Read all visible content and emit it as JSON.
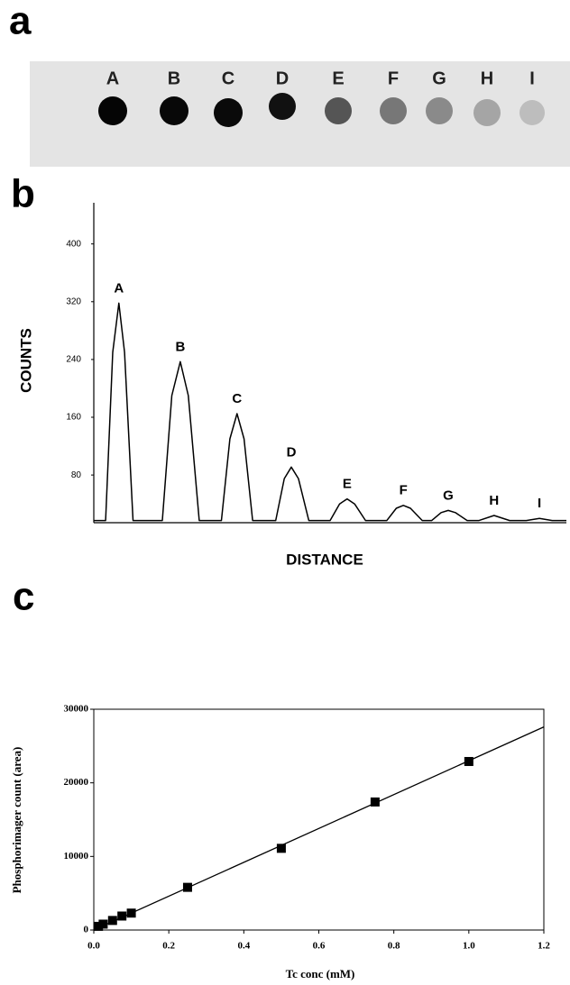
{
  "panel_a": {
    "label": "a",
    "spot_labels": [
      "A",
      "B",
      "C",
      "D",
      "E",
      "F",
      "G",
      "H",
      "I"
    ]
  },
  "chart_data": [
    {
      "type": "line",
      "panel_label": "b",
      "ylabel": "COUNTS",
      "xlabel": "DISTANCE",
      "xlim": [
        0,
        100
      ],
      "ylim": [
        14,
        457
      ],
      "yticks": [
        80,
        160,
        240,
        320,
        400
      ],
      "x": [
        0,
        2.5,
        4,
        5.3,
        6.5,
        8.3,
        14.5,
        16.5,
        18.3,
        20,
        22.3,
        27,
        28.8,
        30.3,
        31.8,
        33.6,
        38.5,
        40.3,
        41.8,
        43.3,
        45.5,
        50,
        52,
        53.6,
        55.2,
        57.5,
        62,
        64,
        65.5,
        67,
        69.5,
        71.5,
        73.5,
        75,
        76.5,
        79,
        81.5,
        84.7,
        88,
        91.5,
        94.3,
        97,
        100
      ],
      "values": [
        17,
        17,
        250,
        318,
        250,
        17,
        17,
        190,
        237,
        190,
        17,
        17,
        130,
        165,
        130,
        17,
        17,
        75,
        91,
        75,
        17,
        17,
        40,
        47,
        40,
        17,
        17,
        34,
        38,
        34,
        17,
        17,
        28,
        31,
        28,
        17,
        17,
        24,
        17,
        17,
        20,
        17,
        17
      ],
      "peak_labels": [
        "A",
        "B",
        "C",
        "D",
        "E",
        "F",
        "G",
        "H",
        "I"
      ],
      "color": "#000000"
    },
    {
      "type": "scatter",
      "panel_label": "c",
      "xlabel": "Tc conc (mM)",
      "ylabel": "Phosphorimager count (area)",
      "xlim": [
        0,
        1.2
      ],
      "ylim": [
        0,
        30000
      ],
      "xticks": [
        {
          "value": 0,
          "label": "0.0"
        },
        0.2,
        0.4,
        0.6,
        0.8,
        {
          "value": 1,
          "label": "1.0"
        },
        1.2
      ],
      "yticks": [
        0,
        10000,
        20000,
        30000
      ],
      "x": [
        0.0125,
        0.025,
        0.05,
        0.075,
        0.1,
        0.25,
        0.5,
        0.75,
        1.0
      ],
      "values": [
        500,
        800,
        1300,
        1900,
        2300,
        5800,
        11100,
        17400,
        22900
      ],
      "fit": {
        "x": [
          0,
          1.2
        ],
        "values": [
          0,
          27600
        ]
      },
      "color": "#000000"
    }
  ]
}
